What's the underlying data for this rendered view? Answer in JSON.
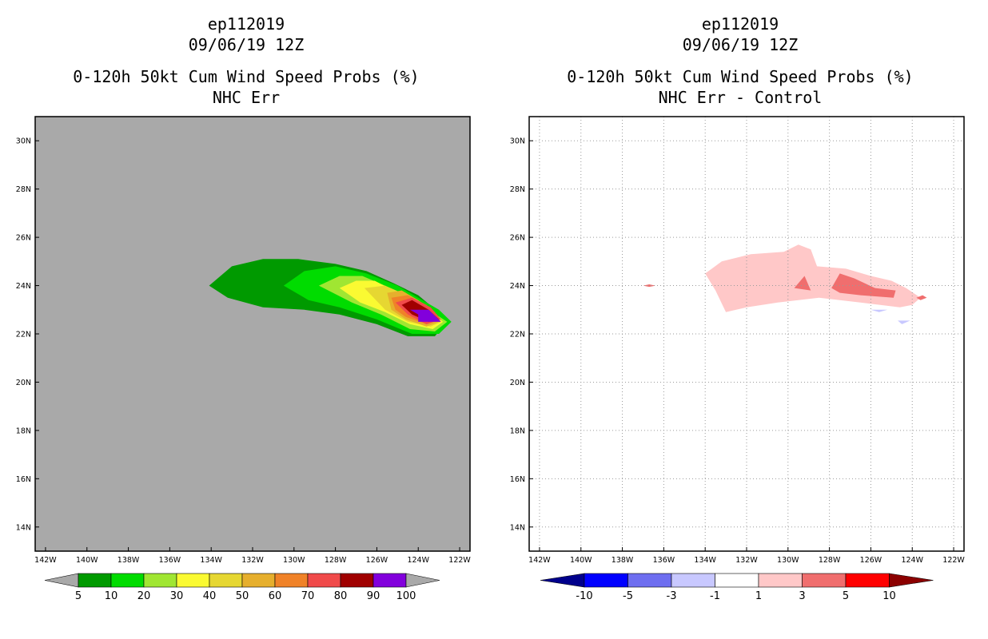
{
  "chart_data": [
    {
      "type": "heatmap",
      "storm_id": "ep112019",
      "date": "09/06/19 12Z",
      "title": "0-120h 50kt Cum Wind Speed Probs (%)",
      "subtitle": "NHC Err",
      "x_ticks": [
        "142W",
        "140W",
        "138W",
        "136W",
        "134W",
        "132W",
        "130W",
        "128W",
        "126W",
        "124W",
        "122W"
      ],
      "y_ticks": [
        "30N",
        "28N",
        "26N",
        "24N",
        "22N",
        "20N",
        "18N",
        "16N",
        "14N"
      ],
      "xlim": [
        -142.5,
        -121.5
      ],
      "ylim": [
        13,
        31
      ],
      "grid": false,
      "background": "#a9a9a9",
      "legend": {
        "colors": [
          "#009a00",
          "#00dc00",
          "#a0e632",
          "#fafa32",
          "#e6d732",
          "#e6af2d",
          "#f08228",
          "#f04a4a",
          "#a00000",
          "#8200dc"
        ],
        "labels": [
          "5",
          "10",
          "20",
          "30",
          "40",
          "50",
          "60",
          "70",
          "80",
          "90",
          "100"
        ]
      },
      "contours": [
        {
          "level": "5-10",
          "color": "#009a00",
          "points": [
            [
              -134.1,
              24.0
            ],
            [
              -133.0,
              24.8
            ],
            [
              -131.5,
              25.1
            ],
            [
              -129.8,
              25.1
            ],
            [
              -128.0,
              24.9
            ],
            [
              -126.5,
              24.6
            ],
            [
              -125.2,
              24.1
            ],
            [
              -124.0,
              23.6
            ],
            [
              -123.3,
              23.1
            ],
            [
              -122.6,
              22.5
            ],
            [
              -123.2,
              21.9
            ],
            [
              -124.5,
              21.9
            ],
            [
              -126.0,
              22.4
            ],
            [
              -127.8,
              22.8
            ],
            [
              -129.5,
              23.0
            ],
            [
              -131.5,
              23.1
            ],
            [
              -133.2,
              23.5
            ]
          ]
        },
        {
          "level": "10-20",
          "color": "#00dc00",
          "points": [
            [
              -130.5,
              24.0
            ],
            [
              -129.5,
              24.6
            ],
            [
              -128.0,
              24.8
            ],
            [
              -126.5,
              24.5
            ],
            [
              -125.0,
              24.0
            ],
            [
              -124.0,
              23.5
            ],
            [
              -123.0,
              23.0
            ],
            [
              -122.4,
              22.5
            ],
            [
              -123.0,
              22.0
            ],
            [
              -124.3,
              22.0
            ],
            [
              -126.0,
              22.6
            ],
            [
              -127.8,
              23.1
            ],
            [
              -129.3,
              23.4
            ]
          ]
        },
        {
          "level": "20-30",
          "color": "#a0e632",
          "points": [
            [
              -128.8,
              24.0
            ],
            [
              -127.8,
              24.4
            ],
            [
              -126.7,
              24.4
            ],
            [
              -125.6,
              24.0
            ],
            [
              -124.5,
              23.5
            ],
            [
              -123.5,
              23.0
            ],
            [
              -122.6,
              22.5
            ],
            [
              -123.2,
              22.1
            ],
            [
              -124.4,
              22.2
            ],
            [
              -125.8,
              22.8
            ],
            [
              -127.2,
              23.3
            ]
          ]
        },
        {
          "level": "30-40",
          "color": "#fafa32",
          "points": [
            [
              -127.8,
              23.9
            ],
            [
              -127.0,
              24.2
            ],
            [
              -126.1,
              24.2
            ],
            [
              -125.2,
              23.8
            ],
            [
              -124.3,
              23.4
            ],
            [
              -123.4,
              22.9
            ],
            [
              -122.8,
              22.5
            ],
            [
              -123.3,
              22.2
            ],
            [
              -124.4,
              22.4
            ],
            [
              -125.6,
              22.9
            ],
            [
              -126.8,
              23.3
            ]
          ]
        },
        {
          "level": "40-50",
          "color": "#e6d732",
          "points": [
            [
              -126.6,
              23.9
            ],
            [
              -125.6,
              24.0
            ],
            [
              -124.8,
              23.7
            ],
            [
              -123.9,
              23.3
            ],
            [
              -123.1,
              22.8
            ],
            [
              -122.9,
              22.5
            ],
            [
              -123.4,
              22.3
            ],
            [
              -124.5,
              22.5
            ],
            [
              -125.6,
              23.0
            ]
          ]
        },
        {
          "level": "50-60",
          "color": "#e6af2d",
          "points": [
            [
              -125.5,
              23.7
            ],
            [
              -124.8,
              23.8
            ],
            [
              -124.0,
              23.4
            ],
            [
              -123.2,
              22.9
            ],
            [
              -123.0,
              22.5
            ],
            [
              -123.6,
              22.3
            ],
            [
              -124.6,
              22.6
            ],
            [
              -125.3,
              23.0
            ]
          ]
        },
        {
          "level": "60-70",
          "color": "#f08228",
          "points": [
            [
              -125.3,
              23.5
            ],
            [
              -124.5,
              23.6
            ],
            [
              -123.6,
              23.2
            ],
            [
              -123.0,
              22.6
            ],
            [
              -123.6,
              22.4
            ],
            [
              -124.6,
              22.7
            ],
            [
              -125.1,
              23.0
            ]
          ]
        },
        {
          "level": "70-80",
          "color": "#f04a4a",
          "points": [
            [
              -125.1,
              23.3
            ],
            [
              -124.3,
              23.5
            ],
            [
              -123.4,
              23.1
            ],
            [
              -122.9,
              22.6
            ],
            [
              -123.6,
              22.4
            ],
            [
              -124.5,
              22.8
            ]
          ]
        },
        {
          "level": "80-90",
          "color": "#a00000",
          "points": [
            [
              -124.8,
              23.2
            ],
            [
              -124.3,
              23.4
            ],
            [
              -123.5,
              23.0
            ],
            [
              -123.0,
              22.6
            ],
            [
              -123.5,
              22.5
            ],
            [
              -124.3,
              22.8
            ]
          ]
        },
        {
          "level": "90-100",
          "color": "#8200dc",
          "points": [
            [
              -124.4,
              23.0
            ],
            [
              -123.5,
              23.0
            ],
            [
              -122.9,
              22.5
            ],
            [
              -124.0,
              22.5
            ],
            [
              -124.0,
              22.8
            ]
          ]
        }
      ]
    },
    {
      "type": "heatmap",
      "storm_id": "ep112019",
      "date": "09/06/19 12Z",
      "title": "0-120h 50kt Cum Wind Speed Probs (%)",
      "subtitle": "NHC Err - Control",
      "x_ticks": [
        "142W",
        "140W",
        "138W",
        "136W",
        "134W",
        "132W",
        "130W",
        "128W",
        "126W",
        "124W",
        "122W"
      ],
      "y_ticks": [
        "30N",
        "28N",
        "26N",
        "24N",
        "22N",
        "20N",
        "18N",
        "16N",
        "14N"
      ],
      "xlim": [
        -142.5,
        -121.5
      ],
      "ylim": [
        13,
        31
      ],
      "grid": true,
      "background": "#ffffff",
      "legend": {
        "colors": [
          "#00008c",
          "#0000ff",
          "#6e6ef0",
          "#c8c8ff",
          "#ffffff",
          "#ffc8c8",
          "#f06e6e",
          "#ff0000",
          "#8c0000"
        ],
        "labels": [
          "-10",
          "-5",
          "-3",
          "-1",
          "1",
          "3",
          "5",
          "10"
        ]
      },
      "contours": [
        {
          "level": "1-3",
          "color": "#ffc8c8",
          "points": [
            [
              -134.0,
              24.5
            ],
            [
              -133.2,
              25.0
            ],
            [
              -131.8,
              25.3
            ],
            [
              -130.2,
              25.4
            ],
            [
              -129.5,
              25.7
            ],
            [
              -128.9,
              25.5
            ],
            [
              -128.6,
              24.8
            ],
            [
              -127.2,
              24.7
            ],
            [
              -126.0,
              24.4
            ],
            [
              -125.0,
              24.2
            ],
            [
              -124.3,
              23.9
            ],
            [
              -123.6,
              23.5
            ],
            [
              -124.0,
              23.2
            ],
            [
              -124.6,
              23.1
            ],
            [
              -126.5,
              23.3
            ],
            [
              -128.5,
              23.5
            ],
            [
              -130.5,
              23.3
            ],
            [
              -132.0,
              23.1
            ],
            [
              -133.0,
              22.9
            ],
            [
              -133.5,
              23.8
            ]
          ]
        },
        {
          "level": "3-5 a",
          "color": "#f06e6e",
          "points": [
            [
              -129.7,
              23.9
            ],
            [
              -129.2,
              24.4
            ],
            [
              -128.9,
              23.8
            ]
          ]
        },
        {
          "level": "3-5 b",
          "color": "#f06e6e",
          "points": [
            [
              -127.9,
              23.9
            ],
            [
              -127.5,
              24.5
            ],
            [
              -126.8,
              24.3
            ],
            [
              -125.8,
              23.9
            ],
            [
              -124.8,
              23.8
            ],
            [
              -124.9,
              23.5
            ],
            [
              -126.5,
              23.6
            ],
            [
              -127.5,
              23.7
            ]
          ]
        },
        {
          "level": "3-5 c",
          "color": "#f06e6e",
          "points": [
            [
              -123.8,
              23.5
            ],
            [
              -123.5,
              23.6
            ],
            [
              -123.3,
              23.5
            ],
            [
              -123.6,
              23.4
            ]
          ]
        },
        {
          "level": "3-5 d",
          "color": "#f06e6e",
          "points": [
            [
              -137.0,
              24.0
            ],
            [
              -136.7,
              24.05
            ],
            [
              -136.4,
              24.0
            ],
            [
              -136.7,
              23.95
            ]
          ]
        },
        {
          "level": "-3--1 a",
          "color": "#c8c8ff",
          "points": [
            [
              -126.0,
              23.0
            ],
            [
              -125.2,
              23.0
            ],
            [
              -125.6,
              22.9
            ]
          ]
        },
        {
          "level": "-3--1 b",
          "color": "#c8c8ff",
          "points": [
            [
              -124.7,
              22.55
            ],
            [
              -124.1,
              22.55
            ],
            [
              -124.5,
              22.4
            ]
          ]
        }
      ]
    }
  ]
}
